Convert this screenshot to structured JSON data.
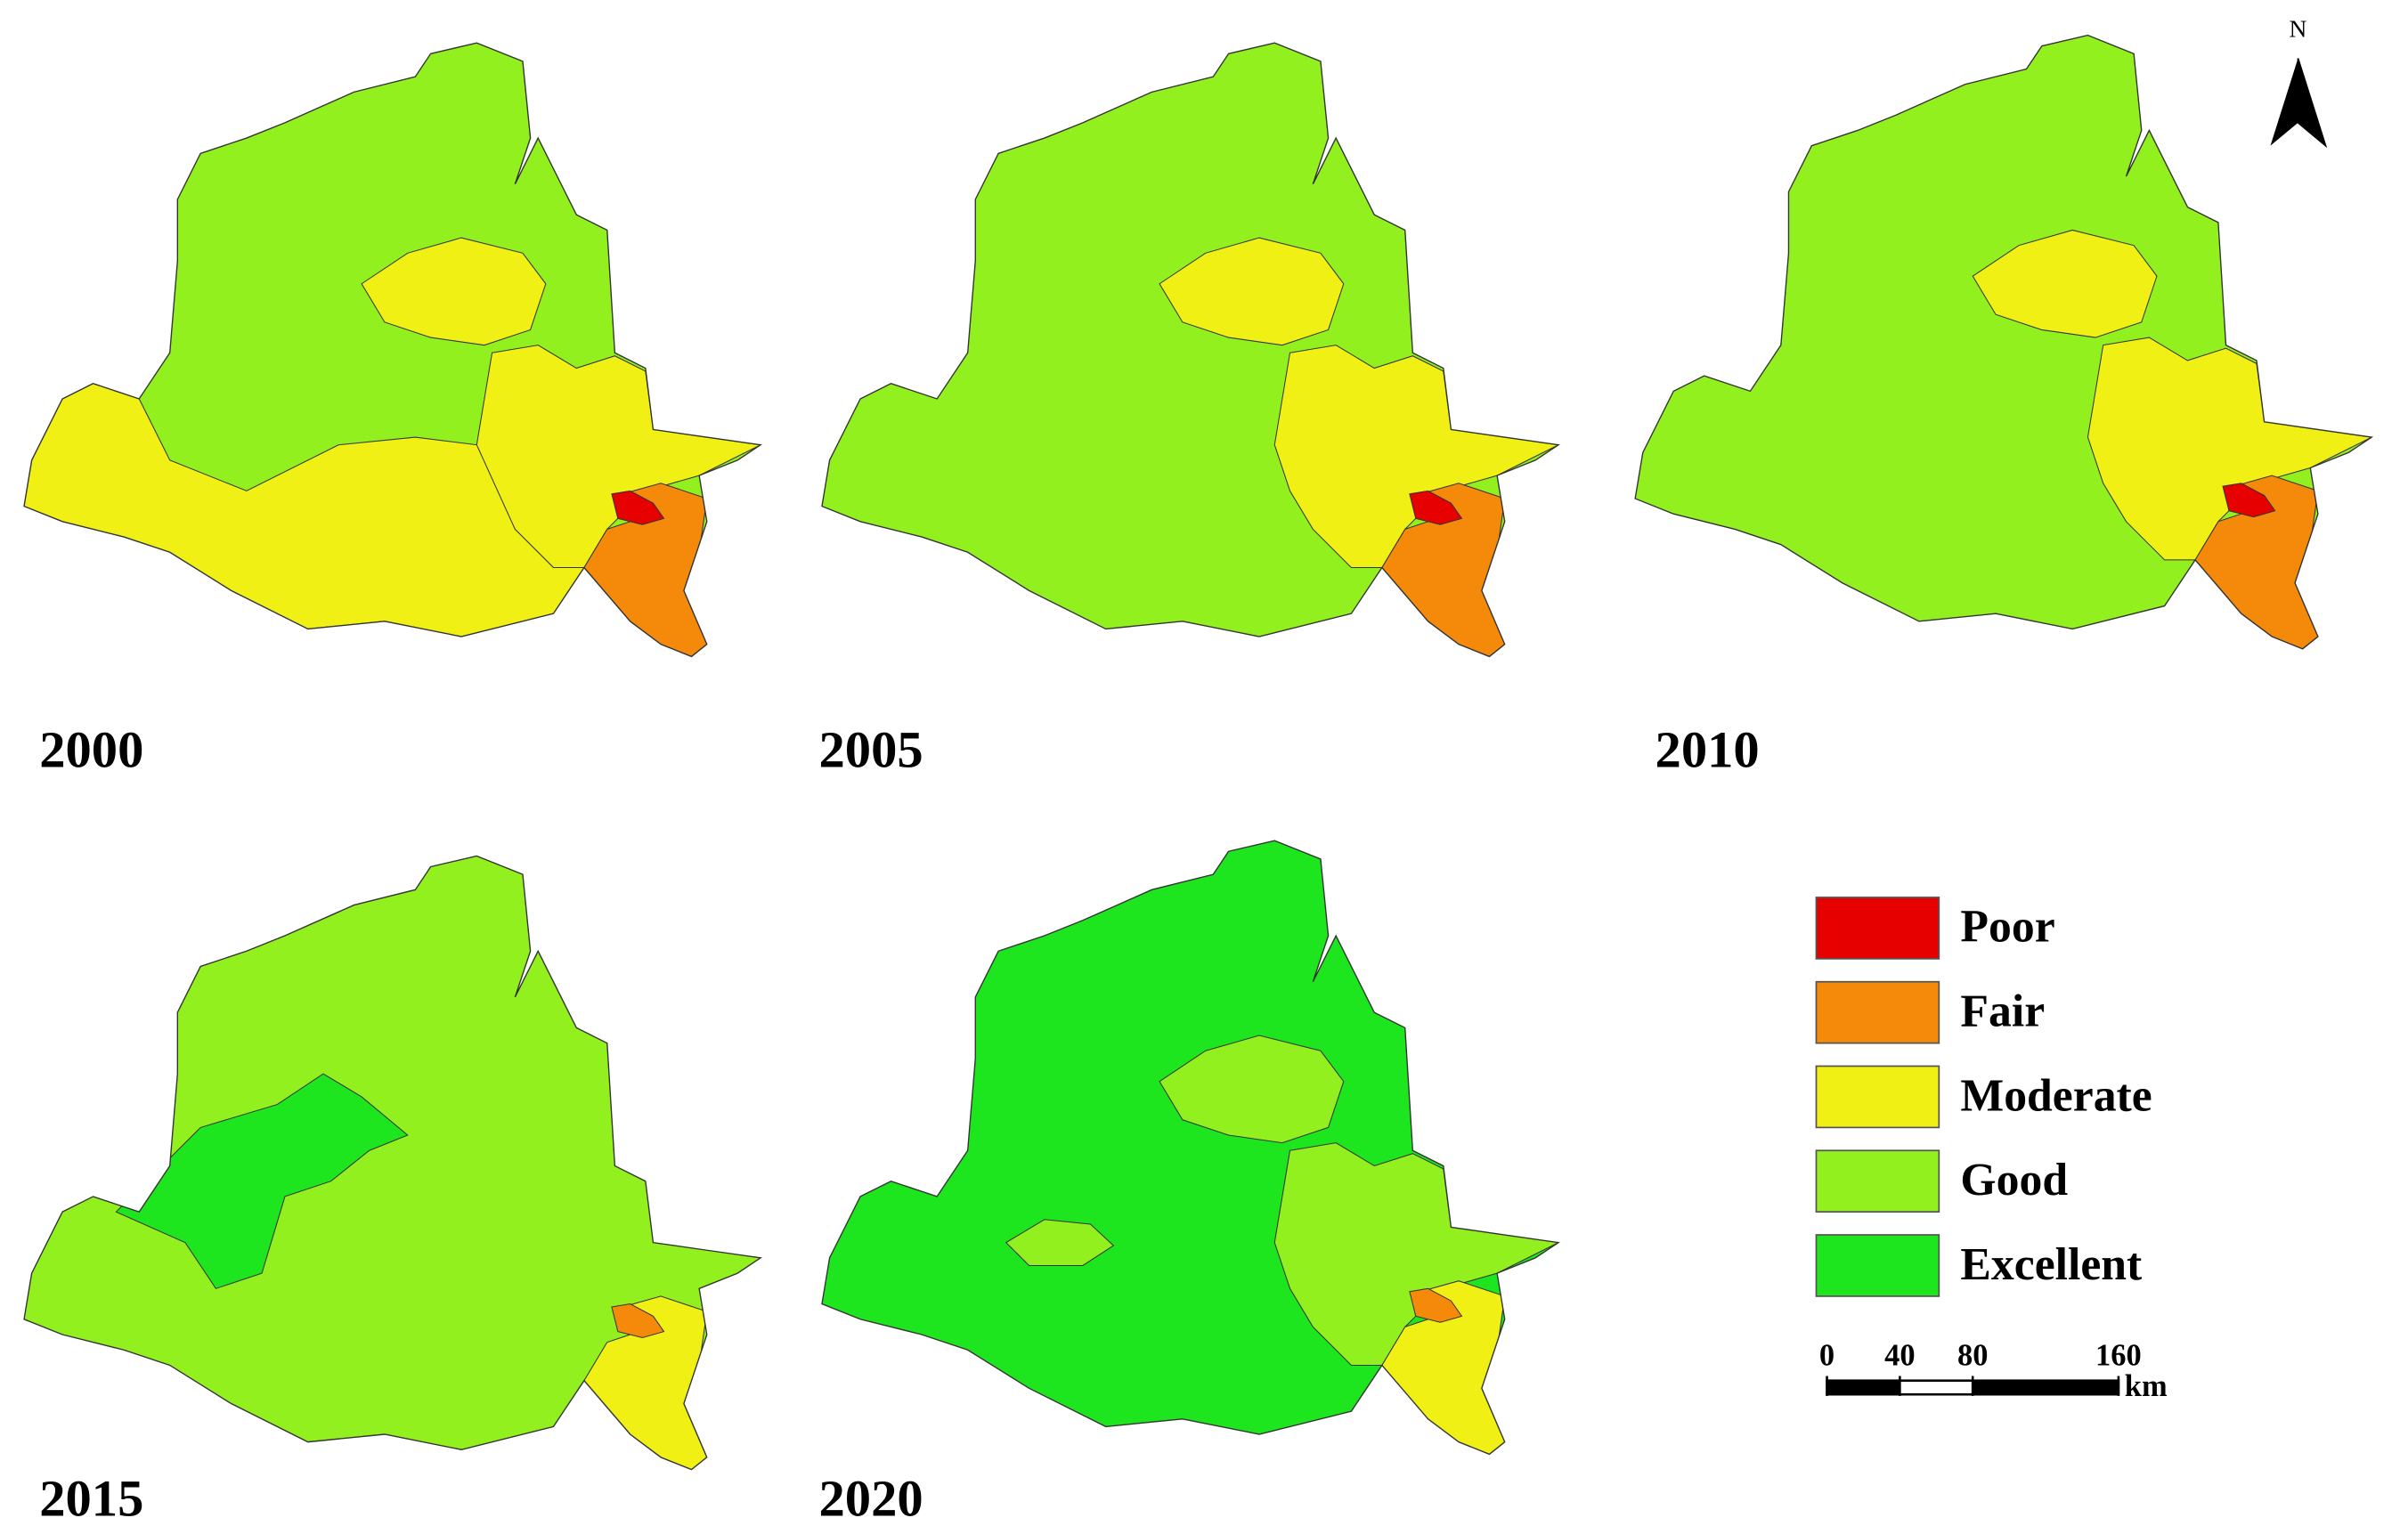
{
  "panels": [
    {
      "year": "2000"
    },
    {
      "year": "2005"
    },
    {
      "year": "2010"
    },
    {
      "year": "2015"
    },
    {
      "year": "2020"
    }
  ],
  "legend": {
    "items": [
      {
        "label": "Poor",
        "color": "#e60000"
      },
      {
        "label": "Fair",
        "color": "#f58a0a"
      },
      {
        "label": "Moderate",
        "color": "#f0f014"
      },
      {
        "label": "Good",
        "color": "#92f01e"
      },
      {
        "label": "Excellent",
        "color": "#1ee61e"
      }
    ]
  },
  "scale_bar": {
    "ticks": [
      0,
      40,
      80,
      160
    ],
    "unit": "km"
  },
  "north_arrow": "N"
}
